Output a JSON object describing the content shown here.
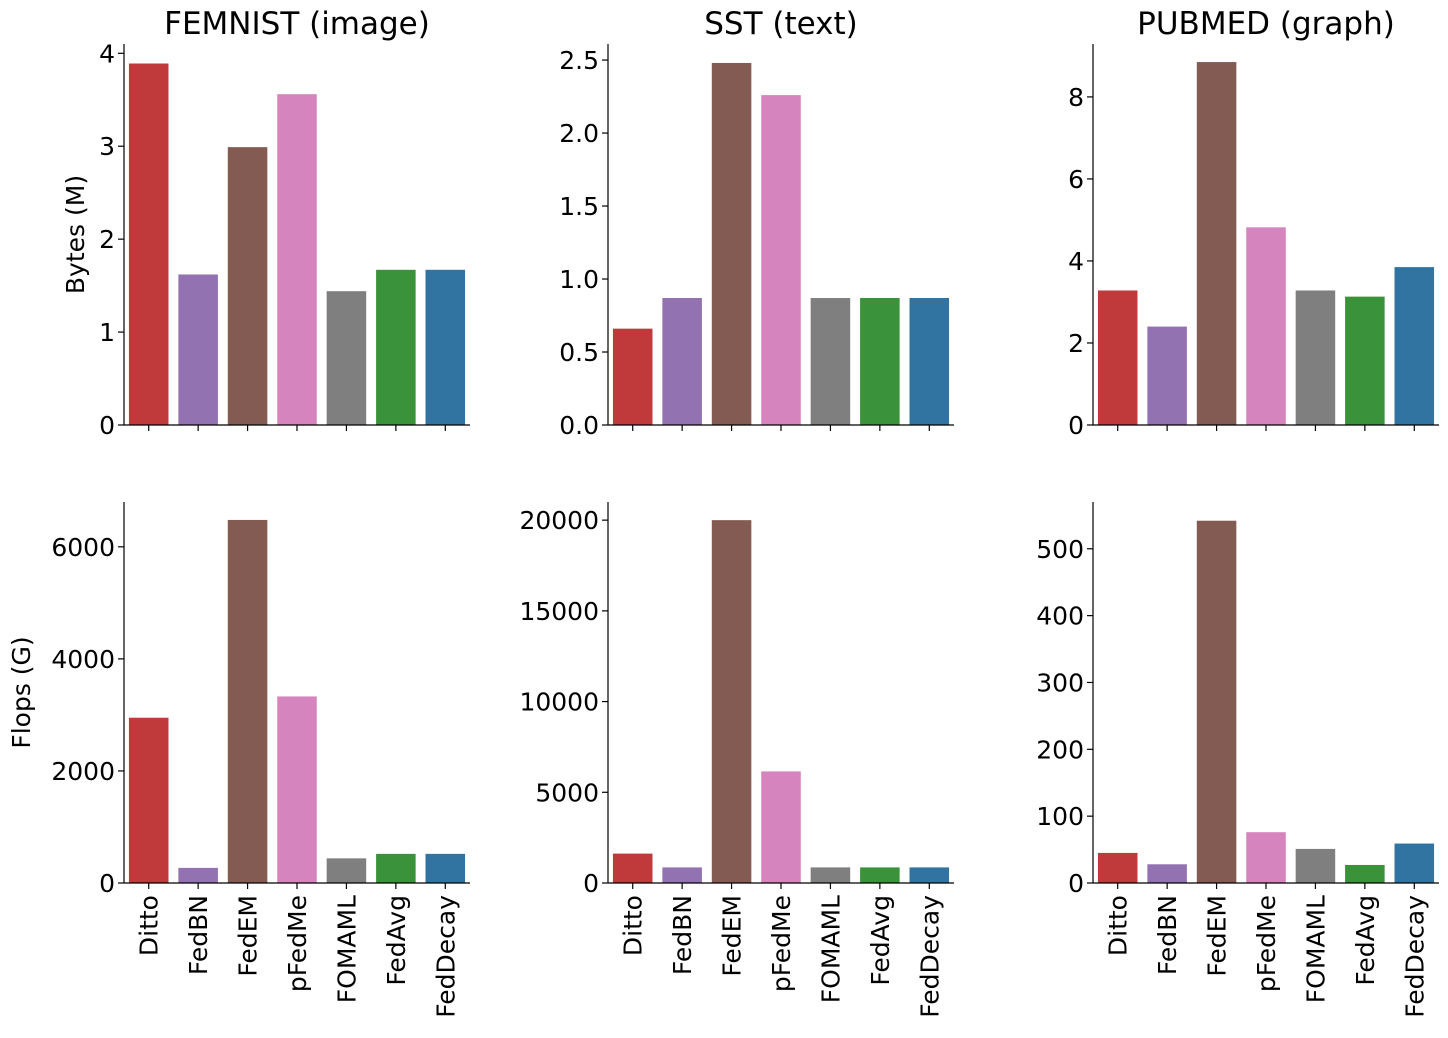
{
  "categories": [
    "Ditto",
    "FedBN",
    "FedEM",
    "pFedMe",
    "FOMAML",
    "FedAvg",
    "FedDecay"
  ],
  "colors": [
    "#c0393b",
    "#9372b2",
    "#845b53",
    "#d684bd",
    "#7f7f7f",
    "#3a923a",
    "#3274a1"
  ],
  "row_labels": [
    "Bytes (M)",
    "Flops (G)"
  ],
  "chart_data": [
    {
      "type": "bar",
      "title": "FEMNIST (image)",
      "ylabel": "Bytes (M)",
      "categories": [
        "Ditto",
        "FedBN",
        "FedEM",
        "pFedMe",
        "FOMAML",
        "FedAvg",
        "FedDecay"
      ],
      "values": [
        3.89,
        1.62,
        2.99,
        3.56,
        1.44,
        1.67,
        1.67
      ],
      "ylim": [
        0,
        4.1
      ],
      "yticks": [
        0,
        1,
        2,
        3,
        4
      ],
      "ytick_labels": [
        "0",
        "1",
        "2",
        "3",
        "4"
      ],
      "show_xticklabels": false
    },
    {
      "type": "bar",
      "title": "SST (text)",
      "ylabel": "",
      "categories": [
        "Ditto",
        "FedBN",
        "FedEM",
        "pFedMe",
        "FOMAML",
        "FedAvg",
        "FedDecay"
      ],
      "values": [
        0.66,
        0.87,
        2.48,
        2.26,
        0.87,
        0.87,
        0.87
      ],
      "ylim": [
        0,
        2.61
      ],
      "yticks": [
        0,
        0.5,
        1.0,
        1.5,
        2.0,
        2.5
      ],
      "ytick_labels": [
        "0.0",
        "0.5",
        "1.0",
        "1.5",
        "2.0",
        "2.5"
      ],
      "show_xticklabels": false
    },
    {
      "type": "bar",
      "title": "PUBMED (graph)",
      "ylabel": "",
      "categories": [
        "Ditto",
        "FedBN",
        "FedEM",
        "pFedMe",
        "FOMAML",
        "FedAvg",
        "FedDecay"
      ],
      "values": [
        3.28,
        2.4,
        8.85,
        4.82,
        3.28,
        3.13,
        3.85
      ],
      "ylim": [
        0,
        9.29
      ],
      "yticks": [
        0,
        2,
        4,
        6,
        8
      ],
      "ytick_labels": [
        "0",
        "2",
        "4",
        "6",
        "8"
      ],
      "show_xticklabels": false
    },
    {
      "type": "bar",
      "title": "",
      "ylabel": "Flops (G)",
      "categories": [
        "Ditto",
        "FedBN",
        "FedEM",
        "pFedMe",
        "FOMAML",
        "FedAvg",
        "FedDecay"
      ],
      "values": [
        2950,
        270,
        6480,
        3330,
        440,
        520,
        520
      ],
      "ylim": [
        0,
        6800
      ],
      "yticks": [
        0,
        2000,
        4000,
        6000
      ],
      "ytick_labels": [
        "0",
        "2000",
        "4000",
        "6000"
      ],
      "show_xticklabels": true
    },
    {
      "type": "bar",
      "title": "",
      "ylabel": "",
      "categories": [
        "Ditto",
        "FedBN",
        "FedEM",
        "pFedMe",
        "FOMAML",
        "FedAvg",
        "FedDecay"
      ],
      "values": [
        1620,
        860,
        20000,
        6150,
        860,
        860,
        860
      ],
      "ylim": [
        0,
        21000
      ],
      "yticks": [
        0,
        5000,
        10000,
        15000,
        20000
      ],
      "ytick_labels": [
        "0",
        "5000",
        "10000",
        "15000",
        "20000"
      ],
      "show_xticklabels": true
    },
    {
      "type": "bar",
      "title": "",
      "ylabel": "",
      "categories": [
        "Ditto",
        "FedBN",
        "FedEM",
        "pFedMe",
        "FOMAML",
        "FedAvg",
        "FedDecay"
      ],
      "values": [
        45,
        28,
        542,
        76,
        51,
        27,
        59
      ],
      "ylim": [
        0,
        570
      ],
      "yticks": [
        0,
        100,
        200,
        300,
        400,
        500
      ],
      "ytick_labels": [
        "0",
        "100",
        "200",
        "300",
        "400",
        "500"
      ],
      "show_xticklabels": true
    }
  ]
}
